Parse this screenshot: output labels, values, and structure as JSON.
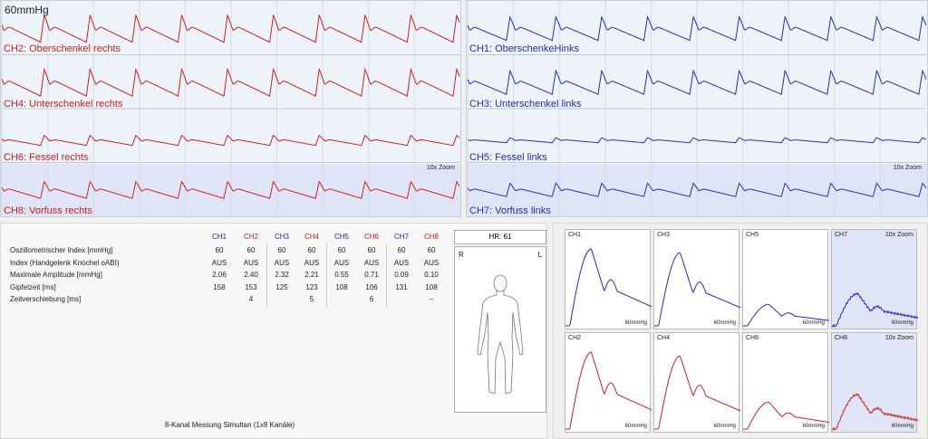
{
  "pressure": "60mmHg",
  "zoom_label": "10x Zoom",
  "right_panel": {
    "channels": [
      {
        "label": "CH2: Oberschenkel rechts",
        "color": "#cc2020"
      },
      {
        "label": "CH4: Unterschenkel rechts",
        "color": "#cc2020"
      },
      {
        "label": "CH6: Fessel rechts",
        "color": "#cc2020"
      },
      {
        "label": "CH8: Vorfuss rechts",
        "color": "#cc2020"
      }
    ]
  },
  "left_panel": {
    "channels": [
      {
        "label": "CH1: OberschenkeHinks",
        "color": "#2a2ab8"
      },
      {
        "label": "CH3: Unterschenkel links",
        "color": "#2a2ab8"
      },
      {
        "label": "CH5: Fessel links",
        "color": "#2a2ab8"
      },
      {
        "label": "CH7: Vorfuss links",
        "color": "#2a2ab8"
      }
    ]
  },
  "table": {
    "headers": [
      "CH1",
      "CH2",
      "CH3",
      "CH4",
      "CH5",
      "CH6",
      "CH7",
      "CH8"
    ],
    "header_colors": [
      "#2a2ab8",
      "#cc2020",
      "#2a2ab8",
      "#cc2020",
      "#2a2ab8",
      "#cc2020",
      "#2a2ab8",
      "#cc2020"
    ],
    "rows": [
      {
        "label": "Oszillometrischer Index [mmHg]",
        "values": [
          "60",
          "60",
          "60",
          "60",
          "60",
          "60",
          "60",
          "60"
        ]
      },
      {
        "label": "Index (Handgelenk Knöchel oABI)",
        "values": [
          "AUS",
          "AUS",
          "AUS",
          "AUS",
          "AUS",
          "AUS",
          "AUS",
          "AUS"
        ]
      },
      {
        "label": "Maximale Amplitude [mmHg]",
        "values": [
          "2.06",
          "2.40",
          "2.32",
          "2.21",
          "0.55",
          "0.71",
          "0.09",
          "0.10"
        ]
      },
      {
        "label": "Gipfelzeit [ms]",
        "values": [
          "158",
          "153",
          "125",
          "123",
          "108",
          "106",
          "131",
          "108"
        ]
      },
      {
        "label": "Zeitverschiebung [ms]",
        "values": [
          "",
          "4",
          "",
          "5",
          "",
          "6",
          "",
          "--"
        ]
      }
    ]
  },
  "hr": "HR:  61",
  "side_r": "R",
  "side_l": "L",
  "footer": "8-Kanal Messung Simultan (1x8 Kanäle)",
  "mini_unit": "60mmHg",
  "mini_charts": [
    {
      "ch": "CH1",
      "color": "#2a2ab8",
      "zoom": false,
      "amp": 1.0
    },
    {
      "ch": "CH3",
      "color": "#2a2ab8",
      "zoom": false,
      "amp": 0.95
    },
    {
      "ch": "CH5",
      "color": "#2a2ab8",
      "zoom": false,
      "amp": 0.28
    },
    {
      "ch": "CH7",
      "color": "#2a2ab8",
      "zoom": true,
      "amp": 0.42
    },
    {
      "ch": "CH2",
      "color": "#cc2020",
      "zoom": false,
      "amp": 1.0
    },
    {
      "ch": "CH4",
      "color": "#cc2020",
      "zoom": false,
      "amp": 0.95
    },
    {
      "ch": "CH6",
      "color": "#cc2020",
      "zoom": false,
      "amp": 0.35
    },
    {
      "ch": "CH8",
      "color": "#cc2020",
      "zoom": true,
      "amp": 0.45
    }
  ]
}
